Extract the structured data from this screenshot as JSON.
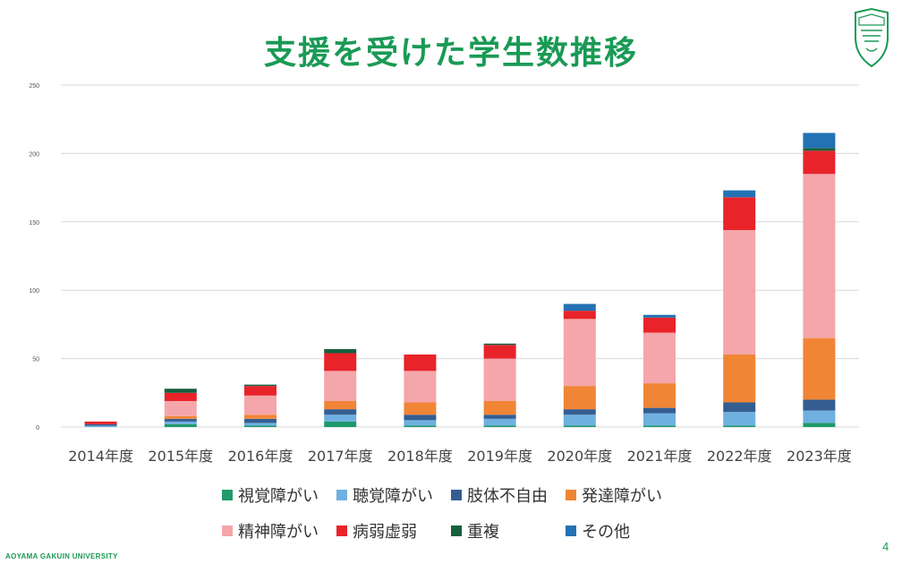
{
  "slide": {
    "title": "支援を受けた学生数推移",
    "footer": "AOYAMA GAKUIN UNIVERSITY",
    "page_number": "4"
  },
  "logo": {
    "icon": "university-shield-icon",
    "color": "#1a9a55"
  },
  "chart_data": {
    "type": "bar",
    "stacked": true,
    "title": "",
    "xlabel": "",
    "ylabel": "",
    "ylim": [
      0,
      250
    ],
    "yticks": [
      "0",
      "50",
      "100",
      "150",
      "200",
      "250"
    ],
    "grid": true,
    "legend_position": "bottom",
    "categories": [
      "2014年度",
      "2015年度",
      "2016年度",
      "2017年度",
      "2018年度",
      "2019年度",
      "2020年度",
      "2021年度",
      "2022年度",
      "2023年度"
    ],
    "series": [
      {
        "name": "視覚障がい",
        "color": "#1f9a6a",
        "values": [
          0,
          2,
          1,
          4,
          1,
          1,
          1,
          1,
          1,
          3
        ]
      },
      {
        "name": "聴覚障がい",
        "color": "#6fb0e0",
        "values": [
          1,
          2,
          2,
          5,
          4,
          5,
          8,
          9,
          10,
          9
        ]
      },
      {
        "name": "肢体不自由",
        "color": "#345e92",
        "values": [
          1,
          2,
          3,
          4,
          4,
          3,
          4,
          4,
          7,
          8
        ]
      },
      {
        "name": "発達障がい",
        "color": "#f08536",
        "values": [
          0,
          2,
          3,
          6,
          9,
          10,
          17,
          18,
          35,
          45
        ]
      },
      {
        "name": "精神障がい",
        "color": "#f4a6aa",
        "values": [
          0,
          11,
          14,
          22,
          23,
          31,
          49,
          37,
          91,
          120
        ]
      },
      {
        "name": "病弱虚弱",
        "color": "#e8232a",
        "values": [
          2,
          6,
          7,
          13,
          12,
          10,
          6,
          11,
          24,
          17
        ]
      },
      {
        "name": "重複",
        "color": "#16603e",
        "values": [
          0,
          3,
          1,
          3,
          0,
          1,
          0,
          0,
          0,
          2
        ]
      },
      {
        "name": "その他",
        "color": "#2272b4",
        "values": [
          0,
          0,
          0,
          0,
          0,
          0,
          5,
          2,
          5,
          11
        ]
      }
    ]
  }
}
